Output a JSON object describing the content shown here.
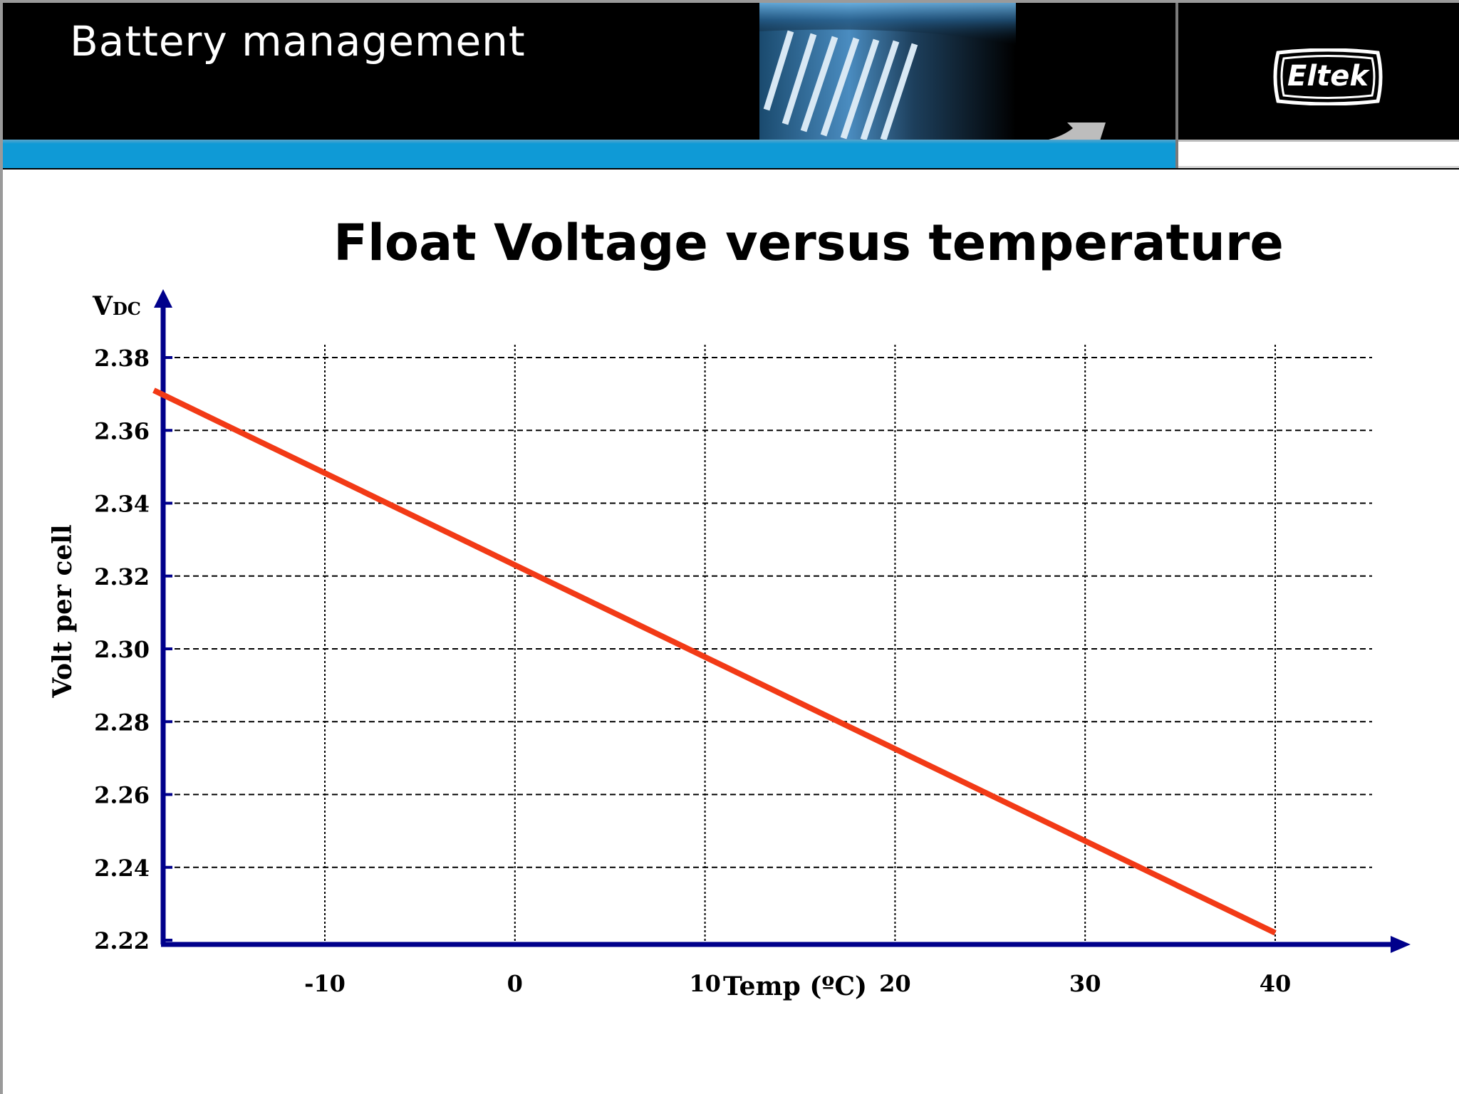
{
  "slide": {
    "title": "Battery management",
    "logo_text": "Eltek"
  },
  "colors": {
    "header_bg": "#000000",
    "accent_blue": "#0f9ad6",
    "axis": "#00008b",
    "line": "#f23a16"
  },
  "chart_data": {
    "type": "line",
    "title": "Float Voltage versus temperature",
    "xlabel": "Temp (ºC)",
    "ylabel": "Volt per cell",
    "y_unit": "VDC",
    "x_ticks": [
      "-10",
      "0",
      "10",
      "20",
      "30",
      "40"
    ],
    "y_ticks": [
      "2.22",
      "2.24",
      "2.26",
      "2.28",
      "2.30",
      "2.32",
      "2.34",
      "2.36",
      "2.38"
    ],
    "xlim": [
      -19,
      40
    ],
    "ylim": [
      2.22,
      2.38
    ],
    "grid": true,
    "series": [
      {
        "x": [
          -19,
          40
        ],
        "y": [
          2.371,
          2.222
        ]
      }
    ]
  }
}
